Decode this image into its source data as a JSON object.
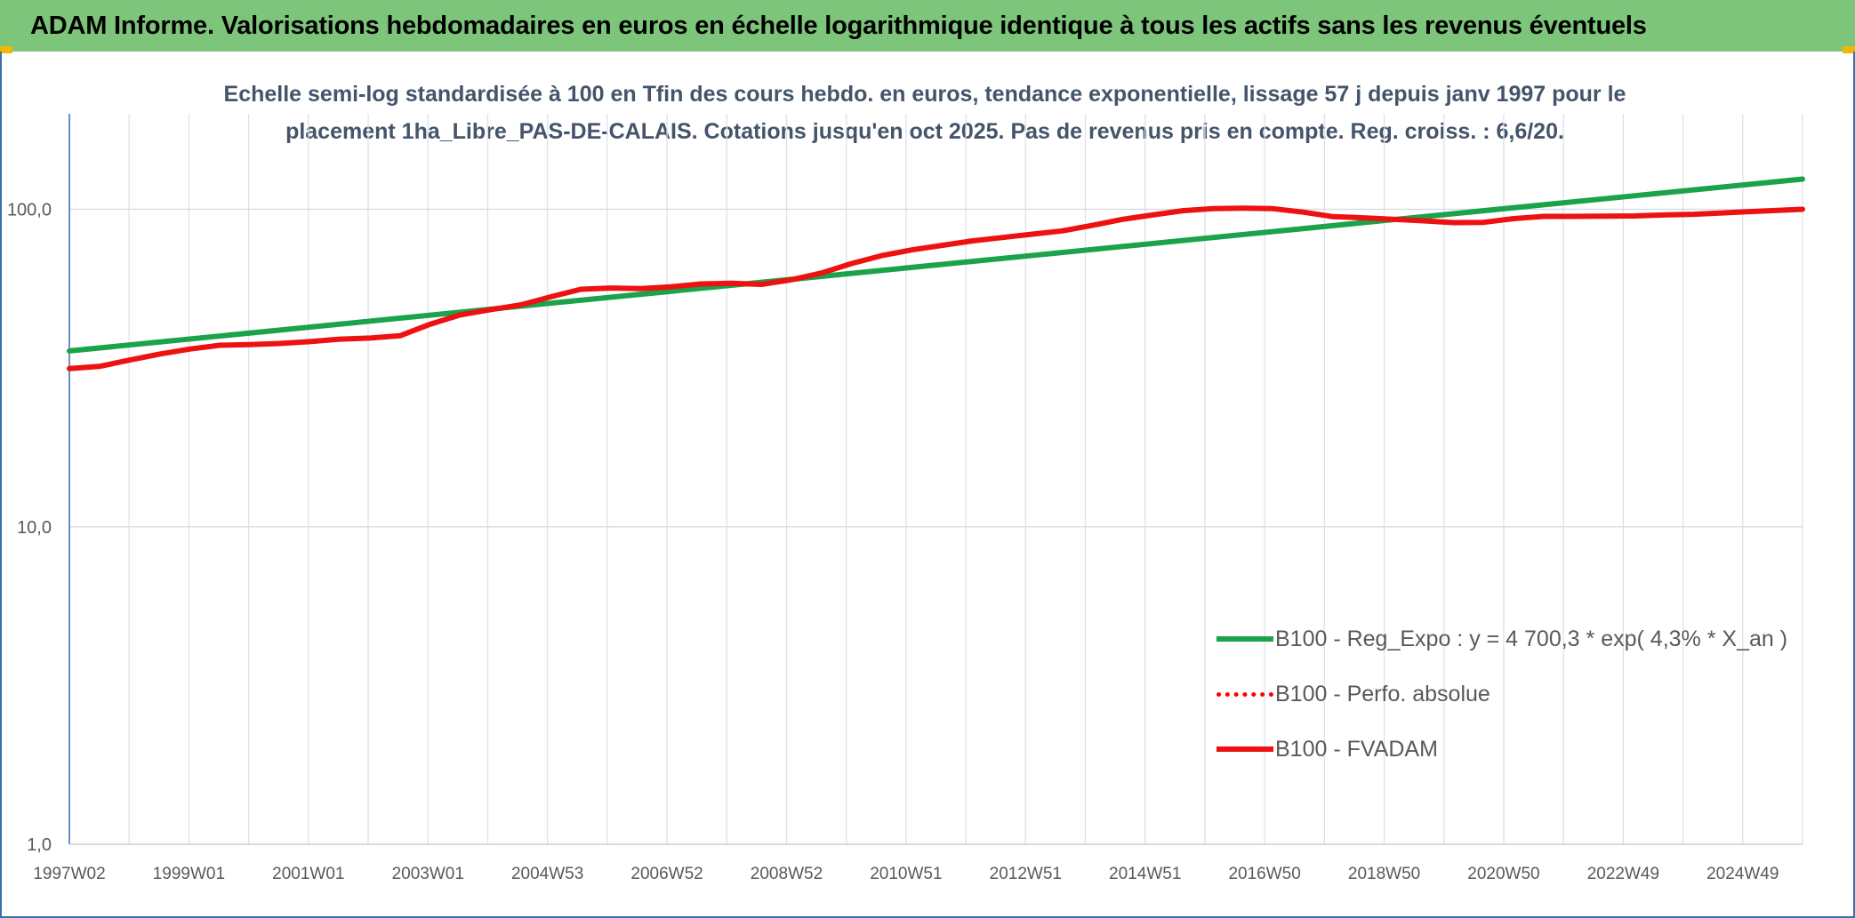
{
  "banner": {
    "title": "ADAM Informe. Valorisations hebdomadaires en euros en échelle logarithmique identique à tous les actifs sans les revenus éventuels"
  },
  "colors": {
    "banner_bg": "#7dc57a",
    "corner_accent": "#f2b705",
    "trend_line": "#1aa34a",
    "perf_line": "#ff0000",
    "fvadam_line": "#ee1111"
  },
  "chart_data": {
    "type": "line",
    "title_line1": "Echelle semi-log standardisée à 100 en Tfin des cours hebdo. en euros, tendance exponentielle, lissage 57 j depuis janv 1997 pour le",
    "title_line2": "placement 1ha_Libre_PAS-DE-CALAIS. Cotations jusqu'en oct 2025. Pas de revenus pris en compte. Reg. croiss. : 6,6/20.",
    "y_scale": "log",
    "ylim": [
      1,
      200
    ],
    "y_ticks": [
      {
        "value": 100,
        "label": "100,0"
      },
      {
        "value": 10,
        "label": "10,0"
      },
      {
        "value": 1,
        "label": "1,0"
      }
    ],
    "x_tick_labels": [
      "1997W02",
      "1999W01",
      "2001W01",
      "2003W01",
      "2004W53",
      "2006W52",
      "2008W52",
      "2010W51",
      "2012W51",
      "2014W51",
      "2016W50",
      "2018W50",
      "2020W50",
      "2022W49",
      "2024W49"
    ],
    "xlim": [
      1997.0,
      2025.8
    ],
    "grid": "vertical lines and horizontal decade lines",
    "legend_position": "bottom-right",
    "series": [
      {
        "name": "B100 - Reg_Expo : y = 4 700,3 * exp( 4,3% *  X_an )",
        "style": "solid",
        "x": [
          1997.0,
          2025.8
        ],
        "values": [
          35.8,
          124.5
        ]
      },
      {
        "name": "B100 - Perfo. absolue",
        "style": "dotted",
        "x": [],
        "values": []
      },
      {
        "name": "B100 - FVADAM",
        "style": "solid",
        "x": [
          1997.0,
          1997.5,
          1998.0,
          1998.5,
          1999.0,
          1999.5,
          2000.0,
          2000.5,
          2001.0,
          2001.5,
          2002.0,
          2002.5,
          2003.0,
          2003.5,
          2004.0,
          2004.5,
          2005.0,
          2005.5,
          2006.0,
          2006.5,
          2007.0,
          2007.5,
          2008.0,
          2008.5,
          2009.0,
          2009.5,
          2010.0,
          2010.5,
          2011.0,
          2011.5,
          2012.0,
          2012.5,
          2013.0,
          2013.5,
          2014.0,
          2014.5,
          2015.0,
          2015.5,
          2016.0,
          2016.5,
          2017.0,
          2017.5,
          2018.0,
          2018.5,
          2019.0,
          2019.5,
          2020.0,
          2020.5,
          2021.0,
          2021.5,
          2022.0,
          2022.5,
          2023.0,
          2023.5,
          2024.0,
          2024.5,
          2025.0,
          2025.8
        ],
        "values": [
          31.5,
          32.0,
          33.5,
          35.0,
          36.3,
          37.3,
          37.5,
          37.8,
          38.3,
          39.0,
          39.3,
          40.0,
          43.5,
          46.5,
          48.3,
          50.0,
          53.0,
          56.0,
          56.5,
          56.3,
          57.0,
          58.2,
          58.5,
          58.0,
          60.0,
          63.0,
          67.5,
          71.5,
          74.5,
          77.0,
          79.5,
          81.5,
          83.5,
          85.5,
          89.0,
          93.0,
          96.0,
          99.0,
          100.5,
          100.8,
          100.5,
          98.0,
          94.8,
          94.0,
          93.0,
          92.0,
          90.8,
          91.0,
          93.5,
          95.0,
          95.0,
          95.2,
          95.3,
          96.0,
          96.5,
          97.5,
          98.5,
          100.0
        ]
      }
    ]
  }
}
